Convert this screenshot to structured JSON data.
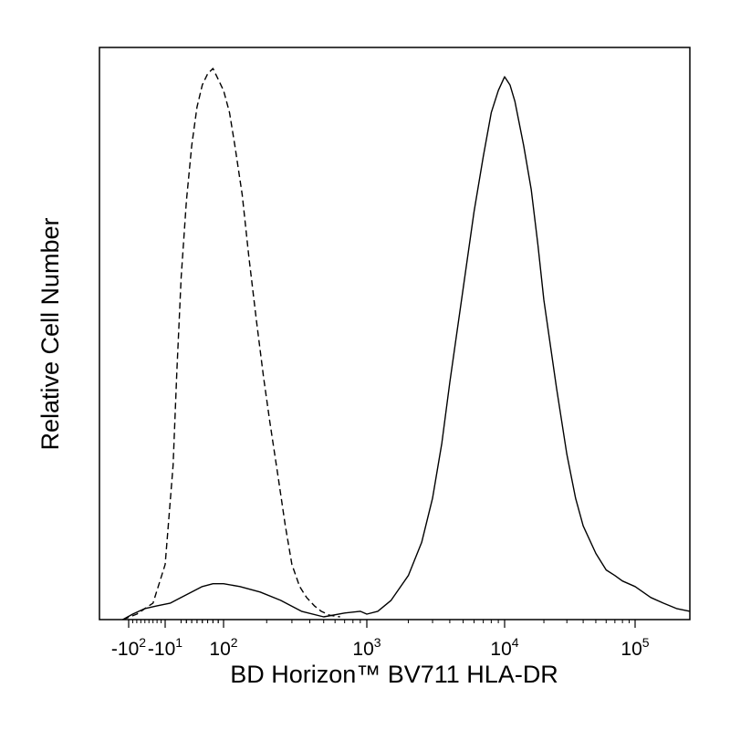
{
  "chart_data": {
    "type": "line",
    "title": "",
    "xlabel": "BD Horizon™ BV711 HLA-DR",
    "ylabel": "Relative Cell Number",
    "x_scale": "biexponential",
    "xlim": [
      -200,
      250000
    ],
    "ylim": [
      0,
      100
    ],
    "grid": false,
    "legend": "none",
    "x_ticks": [
      {
        "value": -100,
        "base": "-10",
        "exp": "2"
      },
      {
        "value": -10,
        "base": "-10",
        "exp": "1"
      },
      {
        "value": 100,
        "base": "10",
        "exp": "2"
      },
      {
        "value": 1000,
        "base": "10",
        "exp": "3"
      },
      {
        "value": 10000,
        "base": "10",
        "exp": "4"
      },
      {
        "value": 100000,
        "base": "10",
        "exp": "5"
      }
    ],
    "series": [
      {
        "style": "dashed",
        "color": "#000000",
        "x": [
          -120,
          -80,
          -40,
          -10,
          5,
          12,
          20,
          30,
          40,
          50,
          60,
          70,
          80,
          90,
          100,
          110,
          120,
          135,
          150,
          170,
          190,
          210,
          240,
          270,
          300,
          340,
          380,
          430,
          480,
          550,
          650
        ],
        "y": [
          0,
          1,
          3,
          10,
          28,
          45,
          62,
          76,
          86,
          93,
          97,
          99,
          100,
          98,
          96,
          92,
          86,
          77,
          66,
          54,
          44,
          36,
          26,
          17,
          10,
          6,
          4,
          2.5,
          1.5,
          0.8,
          0.5
        ]
      },
      {
        "style": "solid",
        "color": "#000000",
        "x": [
          -120,
          -90,
          -60,
          -30,
          0,
          20,
          40,
          60,
          80,
          100,
          130,
          180,
          250,
          350,
          500,
          700,
          900,
          1000,
          1200,
          1500,
          2000,
          2500,
          3000,
          3500,
          4000,
          5000,
          6000,
          7000,
          8000,
          9000,
          10000,
          11000,
          12000,
          14000,
          16000,
          18000,
          20000,
          25000,
          30000,
          35000,
          40000,
          50000,
          60000,
          70000,
          80000,
          100000,
          130000,
          160000,
          200000,
          250000
        ],
        "y": [
          0,
          1,
          2,
          2.5,
          3,
          4,
          5,
          6,
          6.5,
          6.5,
          6,
          5,
          3.5,
          1.5,
          0.5,
          1.2,
          1.5,
          1,
          1.5,
          3.5,
          8,
          14,
          22,
          32,
          43,
          60,
          74,
          84,
          92,
          96,
          98.5,
          97,
          94,
          86,
          78,
          68,
          58,
          42,
          30,
          22,
          17,
          12,
          9,
          8,
          7,
          6,
          4,
          3,
          2,
          1.5
        ]
      }
    ]
  }
}
